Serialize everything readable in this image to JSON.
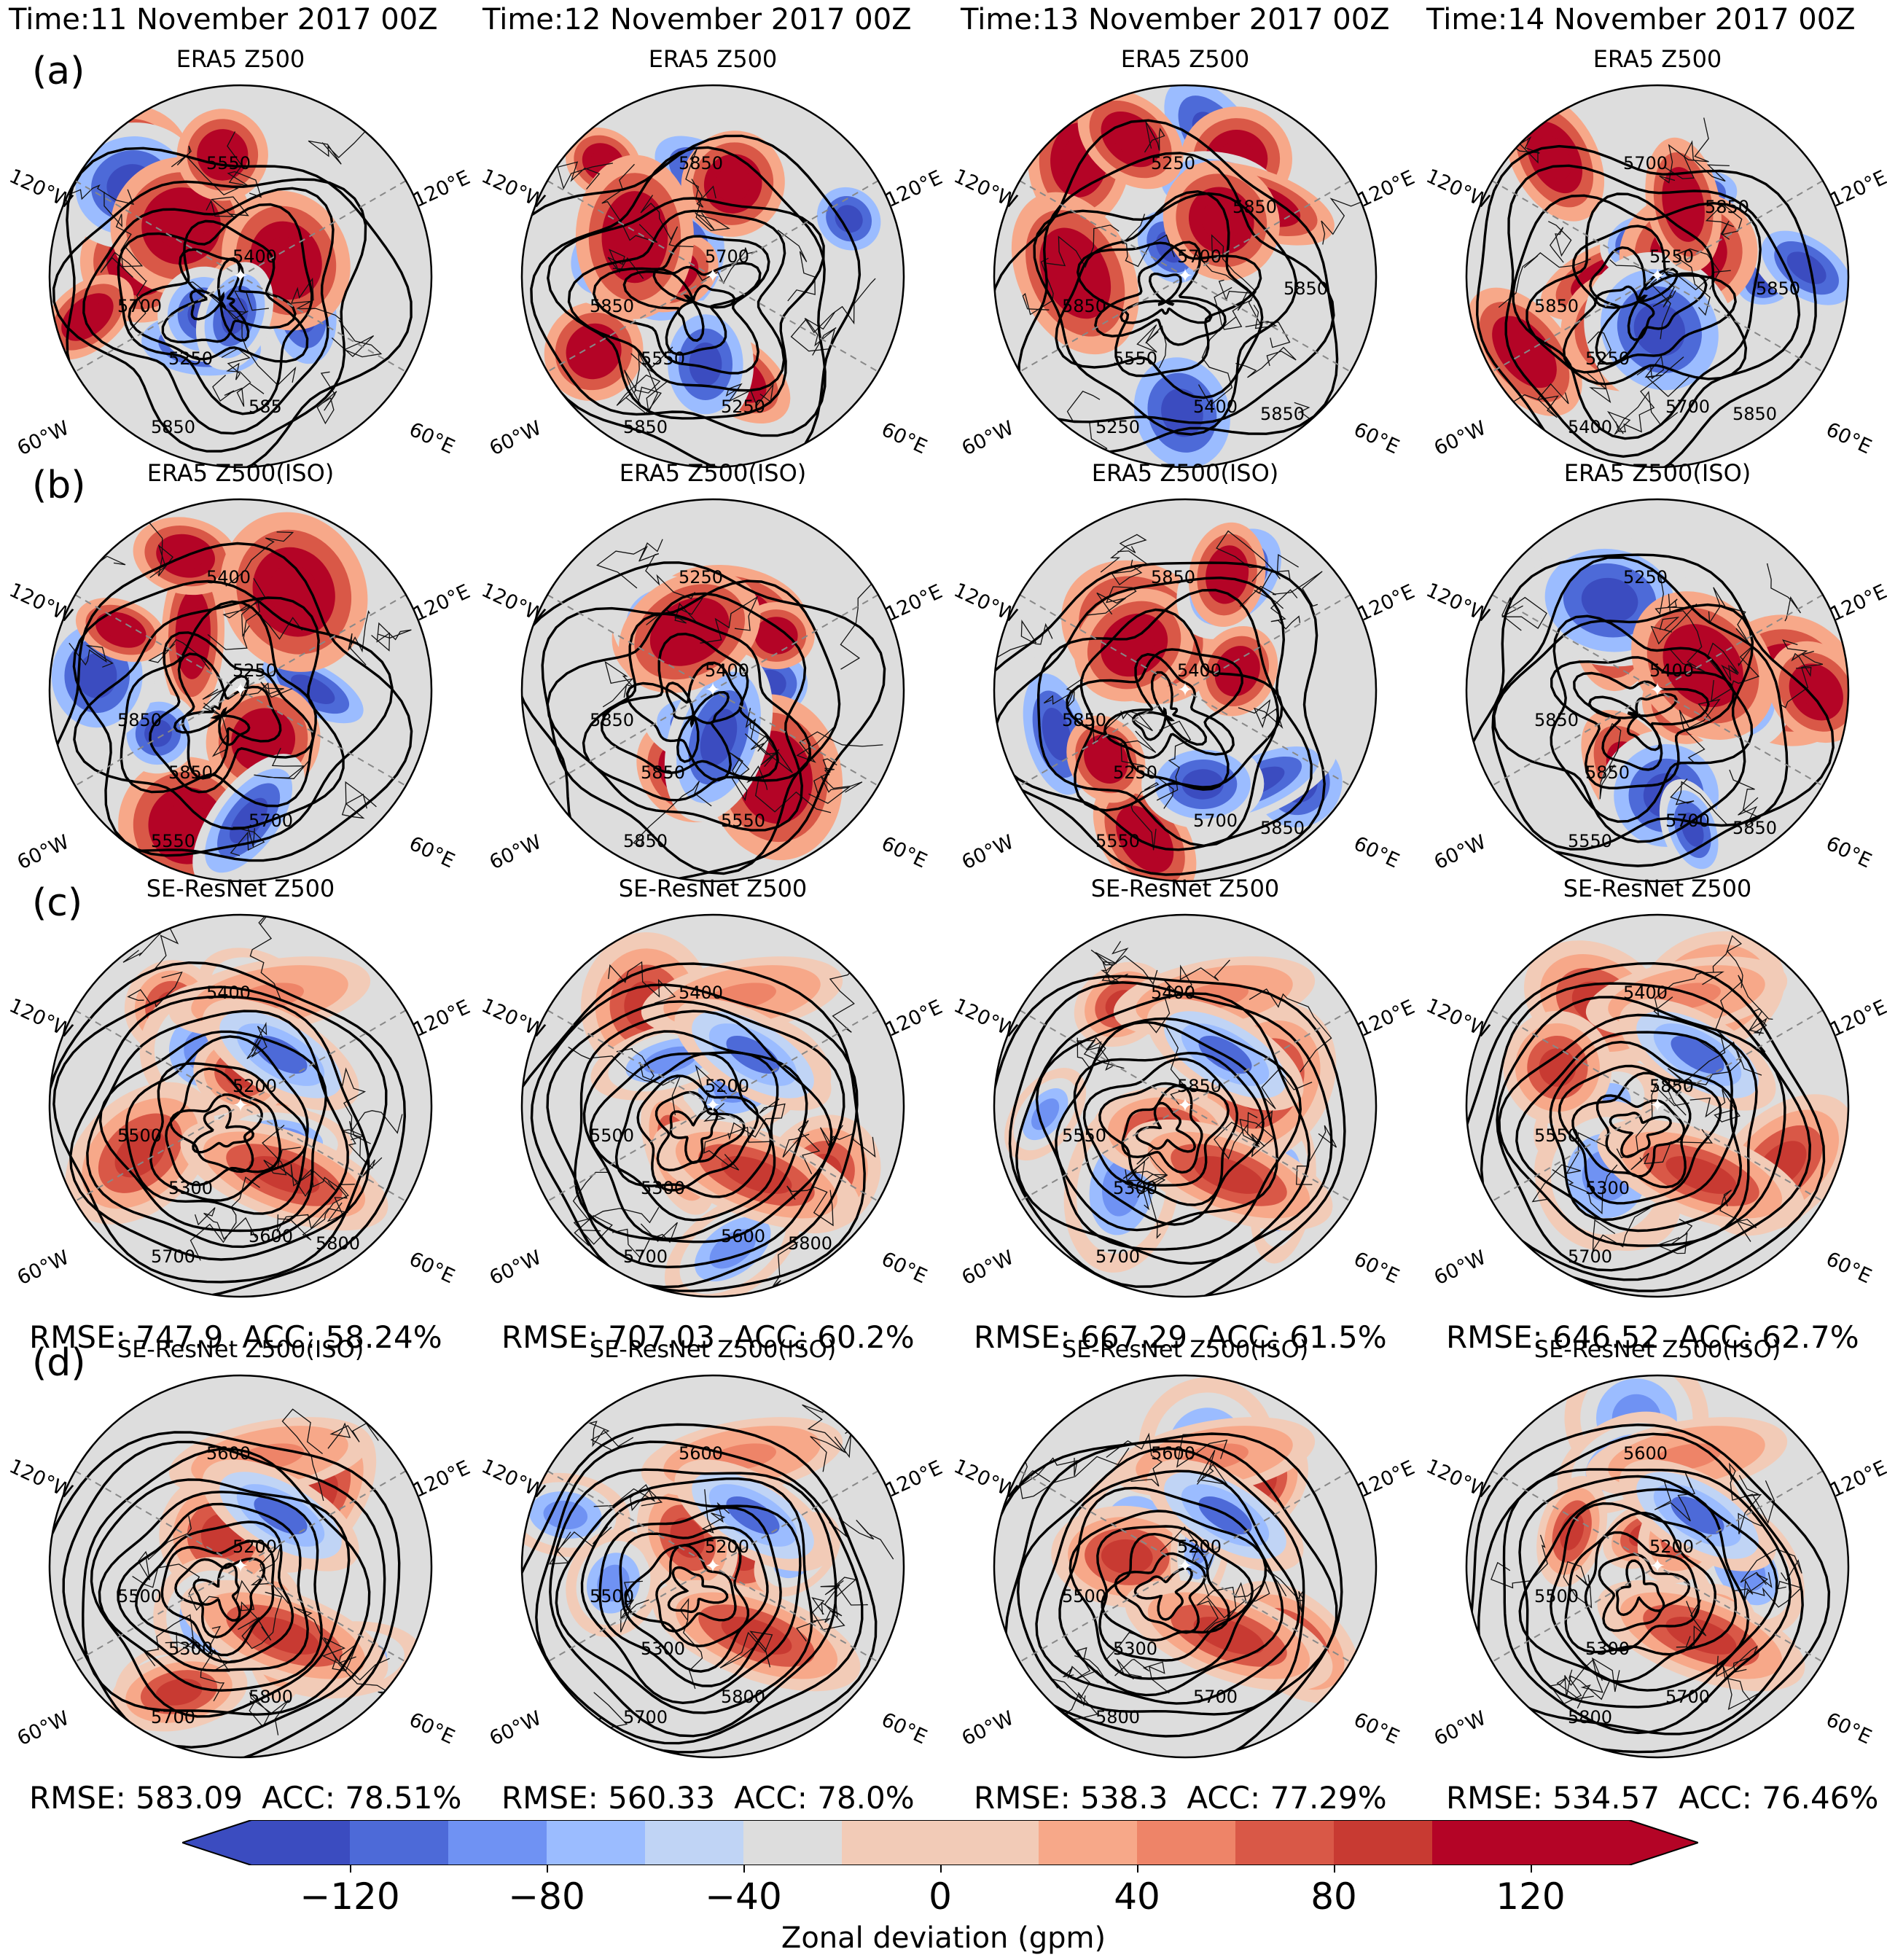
{
  "columns": [
    {
      "time": "Time:11 November 2017 00Z"
    },
    {
      "time": "Time:12 November 2017 00Z"
    },
    {
      "time": "Time:13 November 2017 00Z"
    },
    {
      "time": "Time:14 November 2017 00Z"
    }
  ],
  "rows": [
    {
      "letter": "(a)",
      "title": "ERA5 Z500",
      "panels": [
        {
          "labels": [
            "5700",
            "5400",
            "5250",
            "5550",
            "5850",
            "585"
          ],
          "stats": null
        },
        {
          "labels": [
            "5850",
            "5700",
            "5550",
            "5850",
            "5850",
            "5250"
          ],
          "stats": null
        },
        {
          "labels": [
            "5850",
            "5700",
            "5550",
            "5250",
            "5250",
            "5400",
            "5850",
            "5850",
            "5850"
          ],
          "stats": null
        },
        {
          "labels": [
            "5850",
            "5250",
            "5250",
            "5700",
            "5400",
            "5700",
            "5850",
            "5850",
            "5850"
          ],
          "stats": null
        }
      ]
    },
    {
      "letter": "(b)",
      "title": "ERA5 Z500(ISO)",
      "panels": [
        {
          "labels": [
            "5850",
            "5250",
            "5850",
            "5400",
            "5550",
            "5700"
          ],
          "stats": null
        },
        {
          "labels": [
            "5850",
            "5400",
            "5850",
            "5250",
            "5850",
            "5550"
          ],
          "stats": null
        },
        {
          "labels": [
            "5850",
            "5400",
            "5250",
            "5850",
            "5550",
            "5700",
            "5850"
          ],
          "stats": null
        },
        {
          "labels": [
            "5850",
            "5400",
            "5850",
            "5250",
            "5550",
            "5700",
            "5850"
          ],
          "stats": null
        }
      ]
    },
    {
      "letter": "(c)",
      "title": "SE-ResNet Z500",
      "panels": [
        {
          "labels": [
            "5500",
            "5200",
            "5300",
            "5400",
            "5700",
            "5600",
            "5800"
          ],
          "stats": {
            "rmse": "RMSE: 747.9",
            "acc": "ACC: 58.24%"
          }
        },
        {
          "labels": [
            "5500",
            "5200",
            "5300",
            "5400",
            "5700",
            "5600",
            "5800"
          ],
          "stats": {
            "rmse": "RMSE: 707.03",
            "acc": "ACC: 60.2%"
          }
        },
        {
          "labels": [
            "5550",
            "5850",
            "5300",
            "5400",
            "5700"
          ],
          "stats": {
            "rmse": "RMSE: 667.29",
            "acc": "ACC: 61.5%"
          }
        },
        {
          "labels": [
            "5550",
            "5850",
            "5300",
            "5400",
            "5700"
          ],
          "stats": {
            "rmse": "RMSE: 646.52",
            "acc": "ACC: 62.7%"
          }
        }
      ]
    },
    {
      "letter": "(d)",
      "title": "SE-ResNet Z500(ISO)",
      "panels": [
        {
          "labels": [
            "5500",
            "5200",
            "5300",
            "5600",
            "5700",
            "5800"
          ],
          "stats": {
            "rmse": "RMSE: 583.09",
            "acc": "ACC: 78.51%"
          }
        },
        {
          "labels": [
            "5500",
            "5200",
            "5300",
            "5600",
            "5700",
            "5800"
          ],
          "stats": {
            "rmse": "RMSE: 560.33",
            "acc": "ACC: 78.0%"
          }
        },
        {
          "labels": [
            "5500",
            "5200",
            "5300",
            "5600",
            "5800",
            "5700"
          ],
          "stats": {
            "rmse": "RMSE: 538.3",
            "acc": "ACC: 77.29%"
          }
        },
        {
          "labels": [
            "5500",
            "5200",
            "5300",
            "5600",
            "5800",
            "5700"
          ],
          "stats": {
            "rmse": "RMSE: 534.57",
            "acc": "ACC: 76.46%"
          }
        }
      ]
    }
  ],
  "lon_labels": [
    "120°W",
    "120°E",
    "60°W",
    "60°E"
  ],
  "colorbar": {
    "label": "Zonal deviation (gpm)",
    "ticks": [
      "−120",
      "−80",
      "−40",
      "0",
      "40",
      "80",
      "120"
    ],
    "tick_values": [
      -120,
      -80,
      -40,
      0,
      40,
      80,
      120
    ],
    "boundaries": [
      -140,
      -120,
      -100,
      -80,
      -60,
      -40,
      -20,
      20,
      40,
      60,
      80,
      100,
      120,
      140
    ],
    "colors": [
      "#3b4cc0",
      "#4d6ad8",
      "#6f92f3",
      "#9bbcff",
      "#c0d4f5",
      "#dddddd",
      "#f2cbb7",
      "#f7a889",
      "#ee8468",
      "#d95847",
      "#c83a32",
      "#b40426",
      "#b40426"
    ],
    "under_color": "#3b4cc0",
    "over_color": "#b40426"
  }
}
